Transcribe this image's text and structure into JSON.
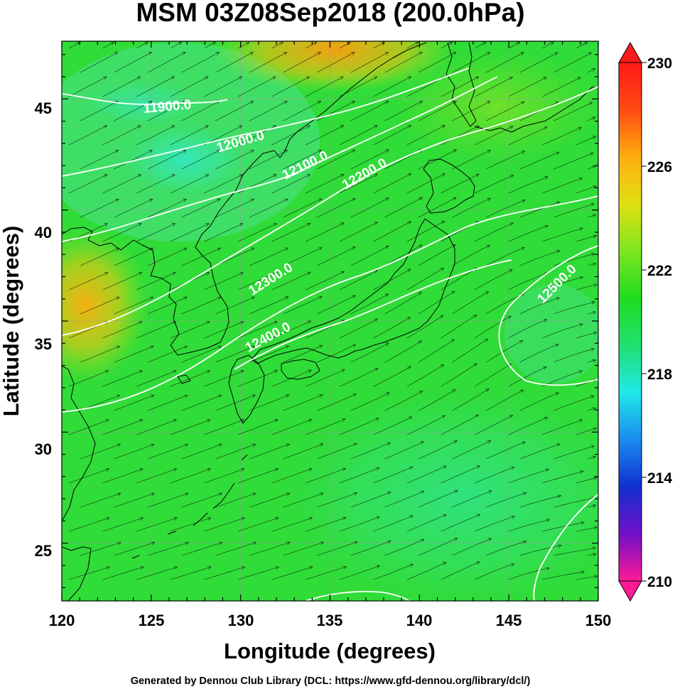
{
  "title": "MSM 03Z08Sep2018 (200.0hPa)",
  "x_axis": {
    "label": "Longitude (degrees)",
    "range": [
      120,
      150
    ],
    "ticks": [
      "120",
      "125",
      "130",
      "135",
      "140",
      "145",
      "150"
    ]
  },
  "y_axis": {
    "label": "Latitude  (degrees)",
    "range": [
      22.4,
      47.6
    ],
    "ticks": [
      "25",
      "30",
      "35",
      "40",
      "45"
    ]
  },
  "colorbar": {
    "range": [
      210,
      230
    ],
    "ticks": [
      "230",
      "226",
      "222",
      "218",
      "214",
      "210"
    ],
    "stops": [
      "#ff1a96",
      "#7010c8",
      "#1030d0",
      "#1a8cf0",
      "#20e8e8",
      "#20e070",
      "#20dc20",
      "#7ee620",
      "#e0e010",
      "#ffae10",
      "#ff4a10",
      "#ff1a1a"
    ]
  },
  "contours": {
    "color": "#ffffff",
    "labels": [
      "11900.0",
      "12000.0",
      "12100.0",
      "12200.0",
      "12300.0",
      "12400.0",
      "12500.0"
    ]
  },
  "footer": "Generated by Dennou Club Library (DCL: https://www.gfd-dennou.org/library/dcl/)",
  "colors": {
    "field_base": "#30dc38",
    "coast": "#000000",
    "grid": "#9a9a9a"
  }
}
